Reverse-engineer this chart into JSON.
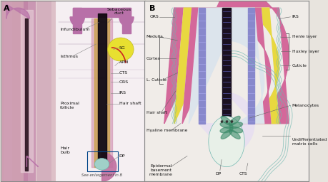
{
  "bg_color": "#e8e4de",
  "panel_a_left_bg": "#e8ccd4",
  "panel_a_right_bg": "#f0e8ec",
  "panel_b_bg": "#f0ece8",
  "label_fontsize": 4.8,
  "label_color": "#1a1a1a",
  "colors": {
    "hist_bg": "#e0c8d0",
    "hist_tissue": "#d4a8b8",
    "hair_outer": "#c8a0b8",
    "hair_dark": "#1a1020",
    "hair_amber": "#c8a040",
    "sg_yellow": "#e8e030",
    "sg_edge": "#c0b820",
    "apm_red": "#cc2222",
    "infund_purple": "#b870a8",
    "sheath_pink": "#d060a0",
    "pink_main": "#d4689a",
    "yellow_layer": "#e8d840",
    "light_purple": "#c8b0d0",
    "light_blue": "#c0cce0",
    "purple_irs": "#8888cc",
    "teal_cts": "#70b8b0",
    "dp_teal_bg": "#a0d0c8",
    "dp_green": "#3a8a68",
    "gray_bg": "#dce4ec",
    "panel_border": "#888888"
  }
}
